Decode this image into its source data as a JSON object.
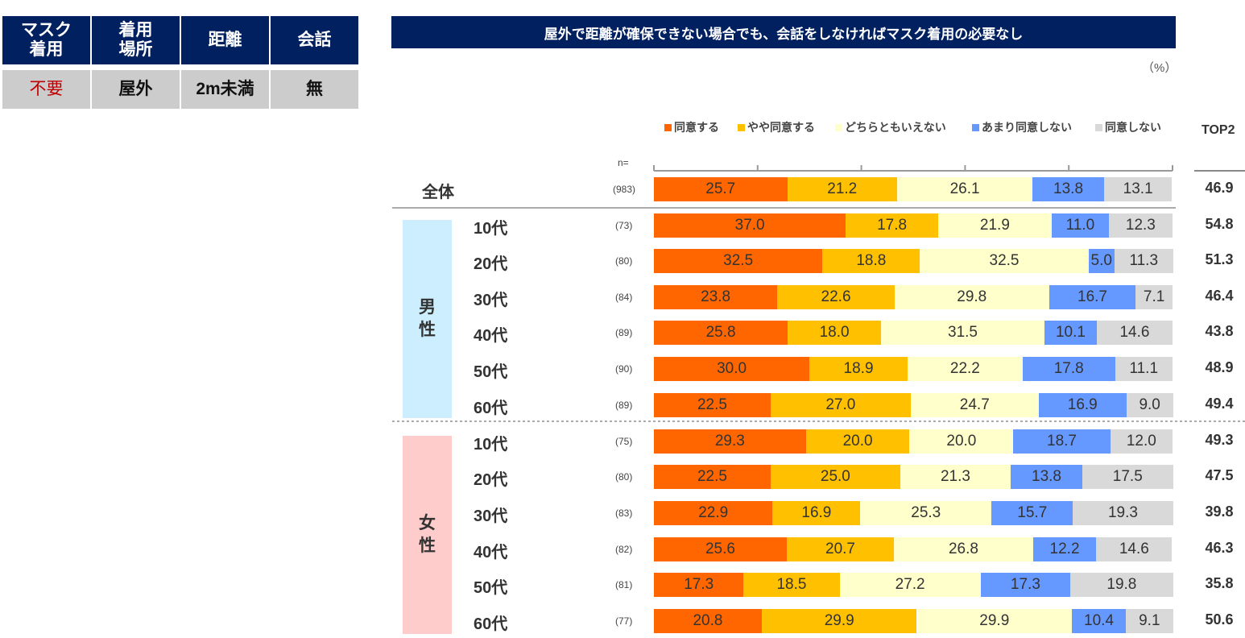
{
  "condition_table": {
    "headers": [
      "マスク\n着用",
      "着用\n場所",
      "距離",
      "会話"
    ],
    "values": [
      "不要",
      "屋外",
      "2m未満",
      "無"
    ],
    "first_value_color": "#c00000"
  },
  "chart_data": {
    "type": "bar",
    "orientation": "horizontal-stacked-100",
    "title": "屋外で距離が確保できない場合でも、会話をしなければマスク着用の必要なし",
    "unit": "（%）",
    "n_label": "n=",
    "top2_label": "TOP2",
    "xlim": [
      0,
      100
    ],
    "legend_position": "top",
    "series": [
      {
        "name": "同意する",
        "color": "#ff6600"
      },
      {
        "name": "やや同意する",
        "color": "#ffc000"
      },
      {
        "name": "どちらともいえない",
        "color": "#ffffcc"
      },
      {
        "name": "あまり同意しない",
        "color": "#6699ff"
      },
      {
        "name": "同意しない",
        "color": "#d9d9d9"
      }
    ],
    "groups": [
      {
        "name": "全体",
        "label_chars": [],
        "rows": [
          {
            "label": "全体",
            "n": "(983)",
            "values": [
              25.7,
              21.2,
              26.1,
              13.8,
              13.1
            ],
            "top2": "46.9"
          }
        ]
      },
      {
        "name": "男性",
        "label_chars": [
          "男",
          "性"
        ],
        "color": "#cdeeff",
        "rows": [
          {
            "label": "10代",
            "n": "(73)",
            "values": [
              37.0,
              17.8,
              21.9,
              11.0,
              12.3
            ],
            "top2": "54.8"
          },
          {
            "label": "20代",
            "n": "(80)",
            "values": [
              32.5,
              18.8,
              32.5,
              5.0,
              11.3
            ],
            "top2": "51.3"
          },
          {
            "label": "30代",
            "n": "(84)",
            "values": [
              23.8,
              22.6,
              29.8,
              16.7,
              7.1
            ],
            "top2": "46.4"
          },
          {
            "label": "40代",
            "n": "(89)",
            "values": [
              25.8,
              18.0,
              31.5,
              10.1,
              14.6
            ],
            "top2": "43.8"
          },
          {
            "label": "50代",
            "n": "(90)",
            "values": [
              30.0,
              18.9,
              22.2,
              17.8,
              11.1
            ],
            "top2": "48.9"
          },
          {
            "label": "60代",
            "n": "(89)",
            "values": [
              22.5,
              27.0,
              24.7,
              16.9,
              9.0
            ],
            "top2": "49.4"
          }
        ]
      },
      {
        "name": "女性",
        "label_chars": [
          "女",
          "性"
        ],
        "color": "#ffcccc",
        "rows": [
          {
            "label": "10代",
            "n": "(75)",
            "values": [
              29.3,
              20.0,
              20.0,
              18.7,
              12.0
            ],
            "top2": "49.3"
          },
          {
            "label": "20代",
            "n": "(80)",
            "values": [
              22.5,
              25.0,
              21.3,
              13.8,
              17.5
            ],
            "top2": "47.5"
          },
          {
            "label": "30代",
            "n": "(83)",
            "values": [
              22.9,
              16.9,
              25.3,
              15.7,
              19.3
            ],
            "top2": "39.8"
          },
          {
            "label": "40代",
            "n": "(82)",
            "values": [
              25.6,
              20.7,
              26.8,
              12.2,
              14.6
            ],
            "top2": "46.3"
          },
          {
            "label": "50代",
            "n": "(81)",
            "values": [
              17.3,
              18.5,
              27.2,
              17.3,
              19.8
            ],
            "top2": "35.8"
          },
          {
            "label": "60代",
            "n": "(77)",
            "values": [
              20.8,
              29.9,
              29.9,
              10.4,
              9.1
            ],
            "top2": "50.6"
          }
        ]
      }
    ]
  }
}
